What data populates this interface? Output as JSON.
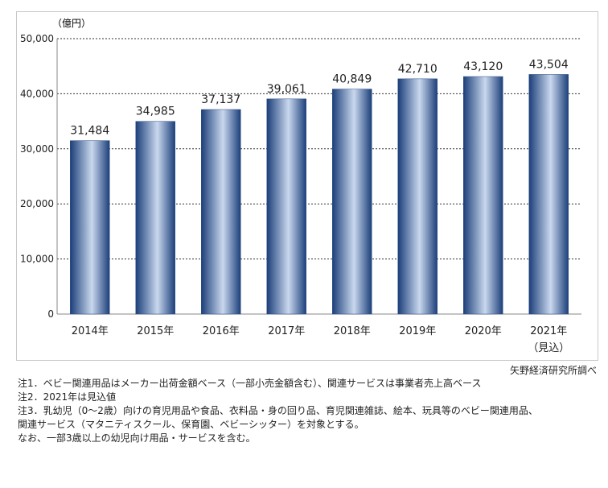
{
  "chart_data": {
    "type": "bar",
    "unit_label": "（億円）",
    "categories": [
      "2014年",
      "2015年",
      "2016年",
      "2017年",
      "2018年",
      "2019年",
      "2020年",
      "2021年"
    ],
    "category_sublabels": [
      "",
      "",
      "",
      "",
      "",
      "",
      "",
      "（見込）"
    ],
    "values": [
      31484,
      34985,
      37137,
      39061,
      40849,
      42710,
      43120,
      43504
    ],
    "value_labels": [
      "31,484",
      "34,985",
      "37,137",
      "39,061",
      "40,849",
      "42,710",
      "43,120",
      "43,504"
    ],
    "ylim": [
      0,
      50000
    ],
    "yticks": [
      0,
      10000,
      20000,
      30000,
      40000,
      50000
    ],
    "ytick_labels": [
      "0",
      "10,000",
      "20,000",
      "30,000",
      "40,000",
      "50,000"
    ],
    "grid": true,
    "bar_color_dark": "#1c3f7a",
    "bar_color_light": "#c9d8ee"
  },
  "source": "矢野経済研究所調べ",
  "notes": [
    "注1．ベビー関連用品はメーカー出荷金額ベース（一部小売金額含む）、関連サービスは事業者売上高ベース",
    "注2．2021年は見込値",
    "注3．乳幼児（0～2歳）向けの育児用品や食品、衣料品・身の回り品、育児関連雑誌、絵本、玩具等のベビー関連用品、",
    "関連サービス（マタニティスクール、保育園、ベビーシッター）を対象とする。",
    "なお、一部3歳以上の幼児向け用品・サービスを含む。"
  ]
}
